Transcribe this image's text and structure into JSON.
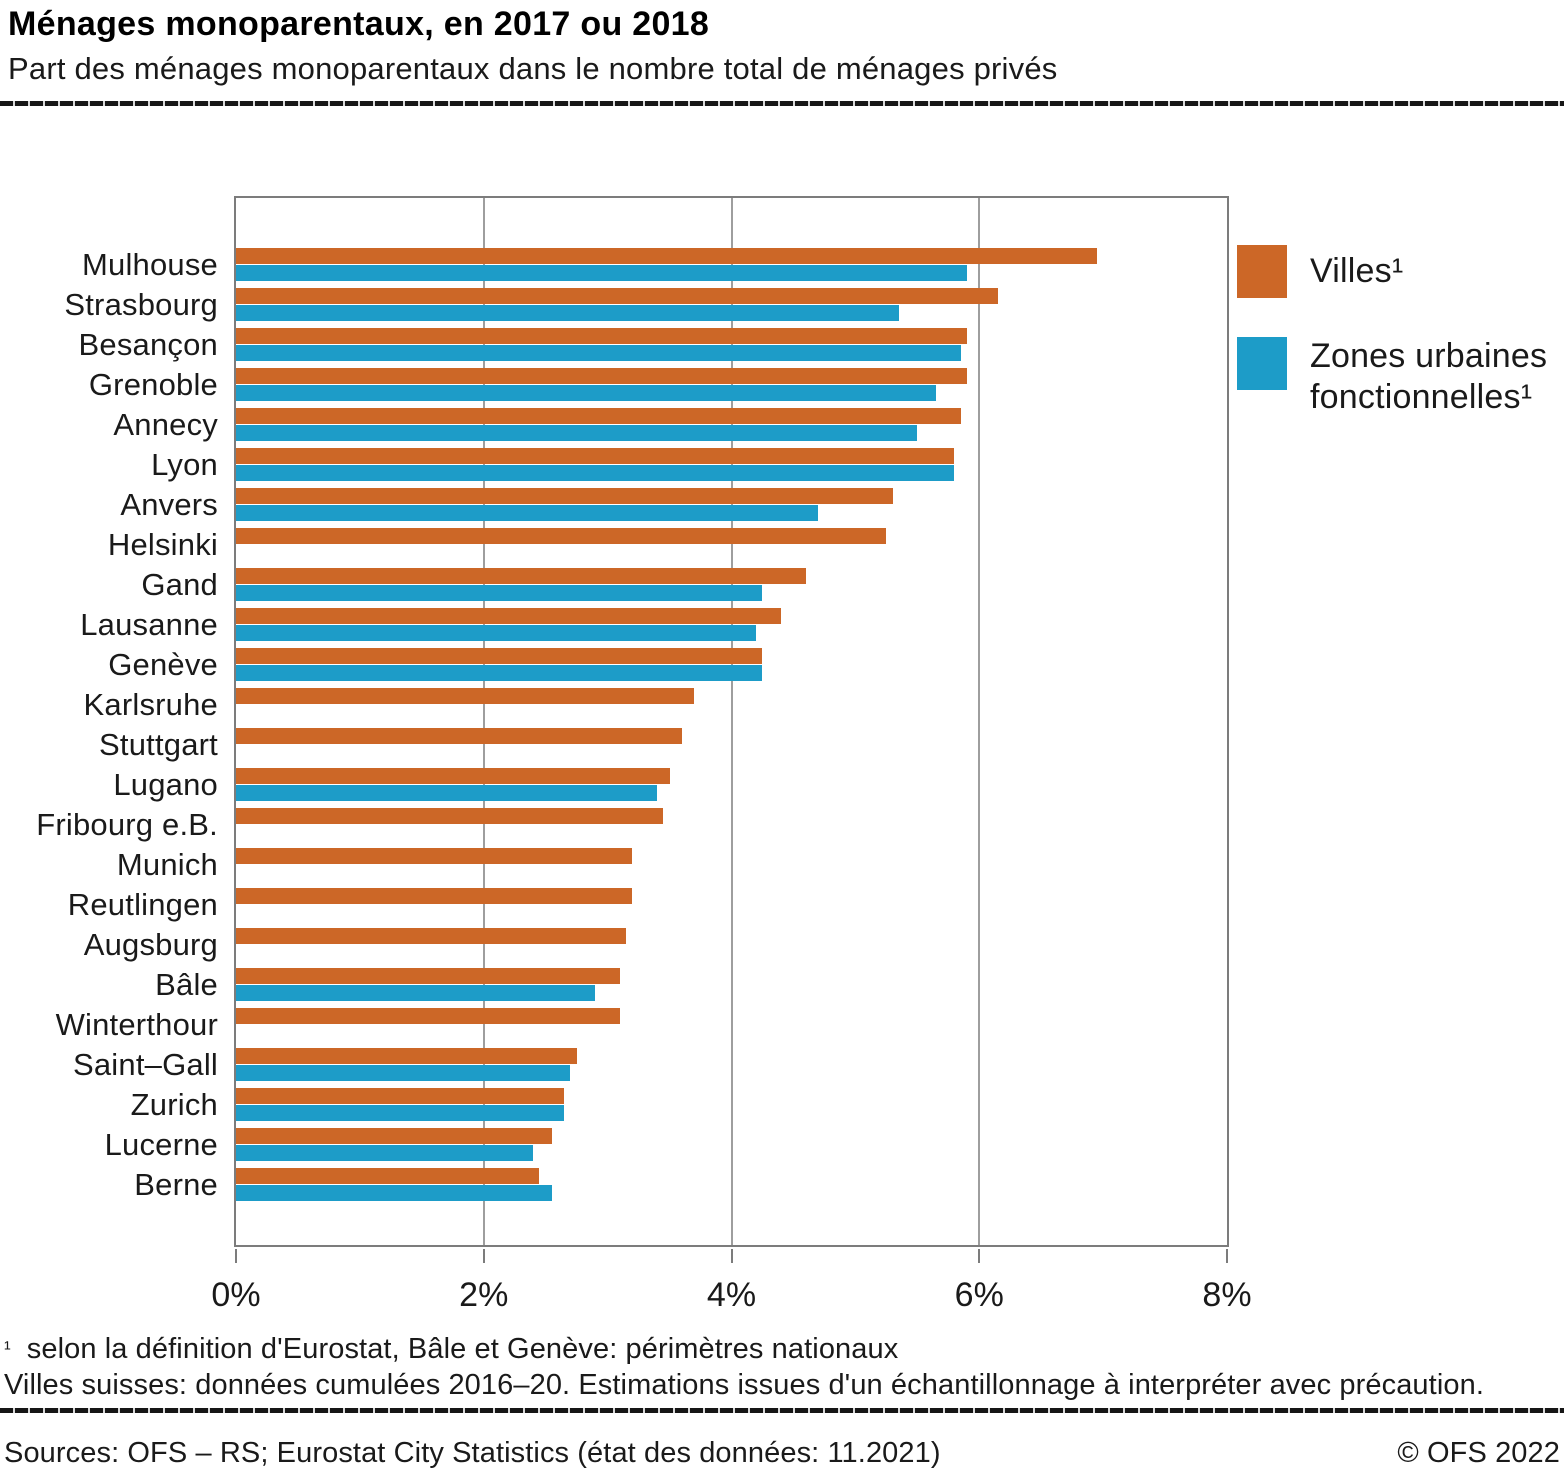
{
  "header": {
    "title": "Ménages monoparentaux, en 2017 ou 2018",
    "subtitle": "Part des ménages monoparentaux dans le nombre total de ménages privés"
  },
  "chart_data": {
    "type": "bar",
    "orientation": "horizontal",
    "title": "Ménages monoparentaux, en 2017 ou 2018",
    "subtitle": "Part des ménages monoparentaux dans le nombre total de ménages privés",
    "xlabel": "",
    "ylabel": "",
    "xlim": [
      0,
      8
    ],
    "x_ticks": [
      "0%",
      "2%",
      "4%",
      "6%",
      "8%"
    ],
    "x_tick_values": [
      0,
      2,
      4,
      6,
      8
    ],
    "grid": "vertical",
    "legend_position": "right",
    "unit": "%",
    "categories": [
      "Mulhouse",
      "Strasbourg",
      "Besançon",
      "Grenoble",
      "Annecy",
      "Lyon",
      "Anvers",
      "Helsinki",
      "Gand",
      "Lausanne",
      "Genève",
      "Karlsruhe",
      "Stuttgart",
      "Lugano",
      "Fribourg e.B.",
      "Munich",
      "Reutlingen",
      "Augsburg",
      "Bâle",
      "Winterthour",
      "Saint–Gall",
      "Zurich",
      "Lucerne",
      "Berne"
    ],
    "series": [
      {
        "name": "Villes¹",
        "color": "#CC6727",
        "values": [
          6.95,
          6.15,
          5.9,
          5.9,
          5.85,
          5.8,
          5.3,
          5.25,
          4.6,
          4.4,
          4.25,
          3.7,
          3.6,
          3.5,
          3.45,
          3.2,
          3.2,
          3.15,
          3.1,
          3.1,
          2.75,
          2.65,
          2.55,
          2.45
        ]
      },
      {
        "name": "Zones urbaines fonctionnelles¹",
        "color": "#1D9CC8",
        "values": [
          5.9,
          5.35,
          5.85,
          5.65,
          5.5,
          5.8,
          4.7,
          null,
          4.25,
          4.2,
          4.25,
          null,
          null,
          3.4,
          null,
          null,
          null,
          null,
          2.9,
          null,
          2.7,
          2.65,
          2.4,
          2.55
        ]
      }
    ]
  },
  "legend": {
    "items": [
      {
        "label": "Villes¹",
        "color": "#CC6727"
      },
      {
        "label": "Zones urbaines fonctionnelles¹",
        "color": "#1D9CC8"
      }
    ]
  },
  "footnotes": {
    "marker": "¹",
    "line1": "selon la définition d'Eurostat, Bâle et Genève: périmètres nationaux",
    "line2": "Villes suisses: données cumulées 2016–20. Estimations issues d'un échantillonnage à interpréter avec précaution."
  },
  "footer": {
    "sources": "Sources: OFS – RS; Eurostat City Statistics (état des données: 11.2021)",
    "copyright": "© OFS 2022"
  }
}
